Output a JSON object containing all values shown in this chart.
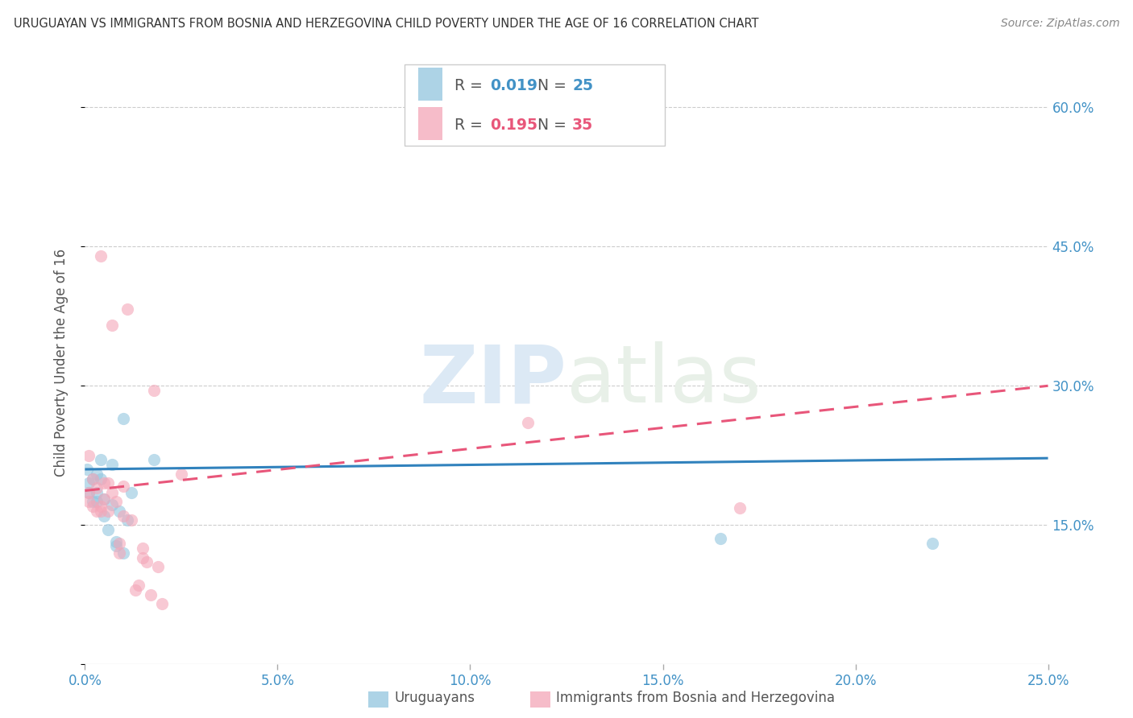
{
  "title": "URUGUAYAN VS IMMIGRANTS FROM BOSNIA AND HERZEGOVINA CHILD POVERTY UNDER THE AGE OF 16 CORRELATION CHART",
  "source": "Source: ZipAtlas.com",
  "ylabel": "Child Poverty Under the Age of 16",
  "legend_label1": "Uruguayans",
  "legend_label2": "Immigrants from Bosnia and Herzegovina",
  "R1": "0.019",
  "N1": "25",
  "R2": "0.195",
  "N2": "35",
  "color_blue": "#92c5de",
  "color_pink": "#f4a6b8",
  "color_blue_text": "#4292c6",
  "color_pink_text": "#e8567a",
  "xlim": [
    0.0,
    0.25
  ],
  "ylim": [
    0.0,
    0.65
  ],
  "yticks": [
    0.0,
    0.15,
    0.3,
    0.45,
    0.6
  ],
  "xticks": [
    0.0,
    0.05,
    0.1,
    0.15,
    0.2,
    0.25
  ],
  "uruguayan_x": [
    0.0005,
    0.001,
    0.001,
    0.002,
    0.002,
    0.003,
    0.003,
    0.003,
    0.004,
    0.004,
    0.005,
    0.005,
    0.006,
    0.007,
    0.007,
    0.008,
    0.008,
    0.009,
    0.01,
    0.01,
    0.011,
    0.012,
    0.018,
    0.165,
    0.22
  ],
  "uruguayan_y": [
    0.21,
    0.195,
    0.185,
    0.2,
    0.175,
    0.205,
    0.185,
    0.175,
    0.22,
    0.2,
    0.16,
    0.178,
    0.145,
    0.172,
    0.215,
    0.132,
    0.128,
    0.165,
    0.12,
    0.265,
    0.155,
    0.185,
    0.22,
    0.135,
    0.13
  ],
  "bosnian_x": [
    0.001,
    0.001,
    0.001,
    0.002,
    0.002,
    0.003,
    0.003,
    0.004,
    0.004,
    0.004,
    0.005,
    0.005,
    0.006,
    0.006,
    0.007,
    0.007,
    0.008,
    0.009,
    0.009,
    0.01,
    0.01,
    0.011,
    0.012,
    0.013,
    0.014,
    0.015,
    0.015,
    0.016,
    0.017,
    0.018,
    0.019,
    0.02,
    0.025,
    0.115,
    0.17
  ],
  "bosnian_y": [
    0.185,
    0.225,
    0.175,
    0.2,
    0.17,
    0.19,
    0.165,
    0.165,
    0.44,
    0.17,
    0.195,
    0.178,
    0.165,
    0.195,
    0.185,
    0.365,
    0.175,
    0.12,
    0.13,
    0.192,
    0.16,
    0.383,
    0.155,
    0.08,
    0.085,
    0.115,
    0.125,
    0.11,
    0.075,
    0.295,
    0.105,
    0.065,
    0.205,
    0.26,
    0.168
  ],
  "blue_line_x": [
    0.0,
    0.25
  ],
  "blue_line_y": [
    0.21,
    0.222
  ],
  "pink_line_x": [
    0.0,
    0.25
  ],
  "pink_line_y": [
    0.187,
    0.3
  ],
  "watermark_zip": "ZIP",
  "watermark_atlas": "atlas",
  "background_color": "#ffffff"
}
